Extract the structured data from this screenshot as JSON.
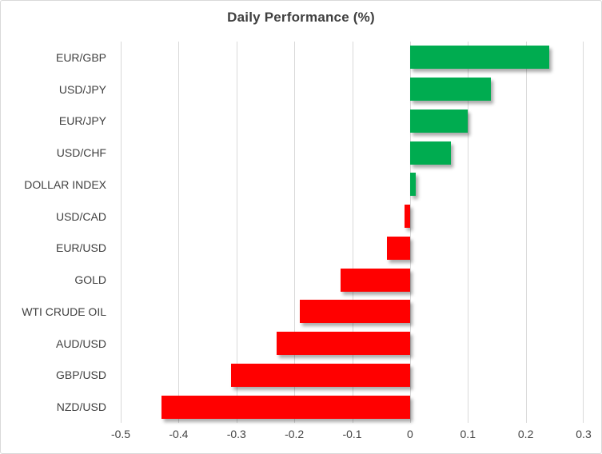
{
  "chart_data": {
    "type": "bar",
    "orientation": "horizontal",
    "title": "Daily Performance (%)",
    "categories": [
      "EUR/GBP",
      "USD/JPY",
      "EUR/JPY",
      "USD/CHF",
      "DOLLAR INDEX",
      "USD/CAD",
      "EUR/USD",
      "GOLD",
      "WTI CRUDE OIL",
      "AUD/USD",
      "GBP/USD",
      "NZD/USD"
    ],
    "values": [
      0.24,
      0.14,
      0.1,
      0.07,
      0.01,
      -0.01,
      -0.04,
      -0.12,
      -0.19,
      -0.23,
      -0.31,
      -0.43
    ],
    "xlim": [
      -0.5,
      0.3
    ],
    "x_ticks": [
      -0.5,
      -0.4,
      -0.3,
      -0.2,
      -0.1,
      0,
      0.1,
      0.2,
      0.3
    ],
    "x_tick_labels": [
      "-0.5",
      "-0.4",
      "-0.3",
      "-0.2",
      "-0.1",
      "0",
      "0.1",
      "0.2",
      "0.3"
    ],
    "grid": true,
    "legend": "none",
    "colors": {
      "positive": "#00ac50",
      "negative": "#ff0000",
      "gridline": "#d9d9d9",
      "frame_border": "#d9d9d9",
      "title_text": "#3f3f3f",
      "label_text": "#404040",
      "tick_text": "#444444"
    }
  }
}
